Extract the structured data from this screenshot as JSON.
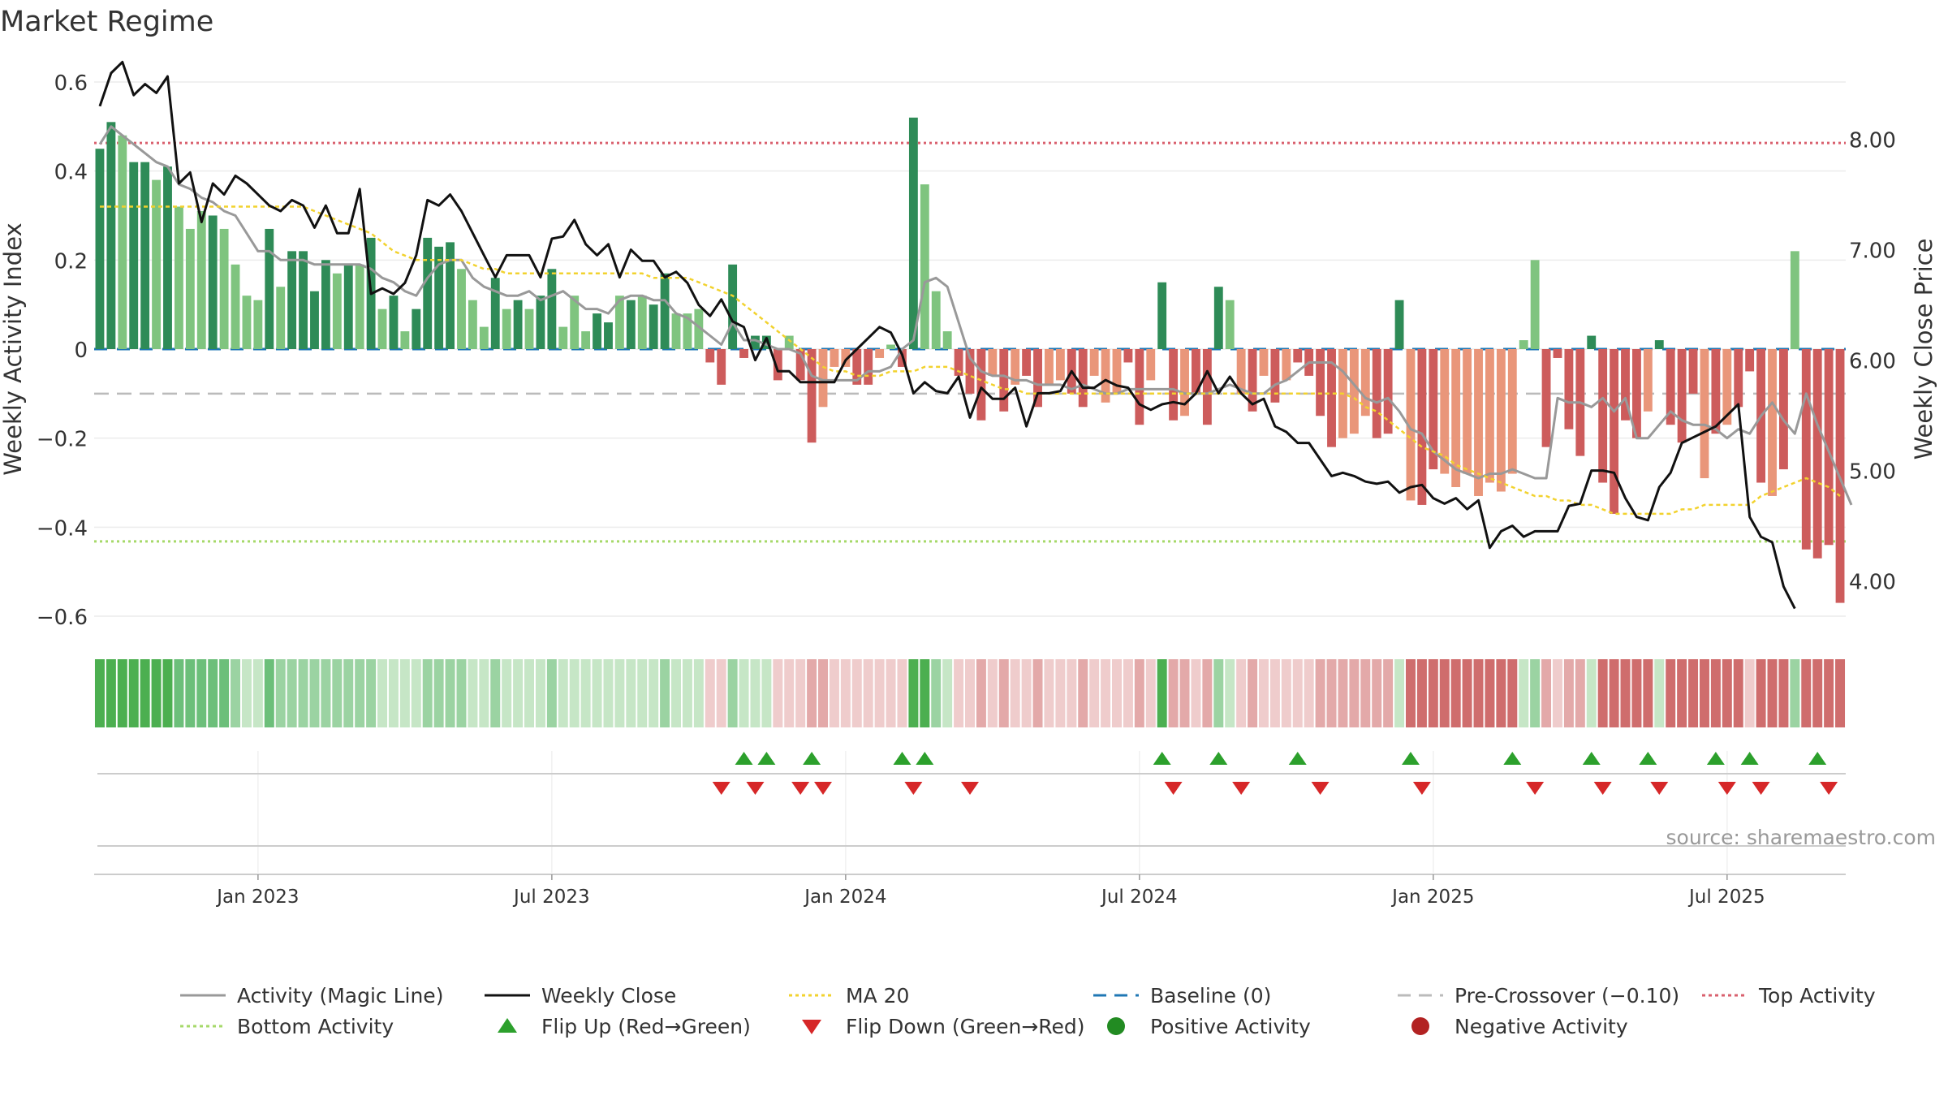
{
  "title": "Market Regime",
  "source_note": "source: sharemaestro.com",
  "colors": {
    "bar_pos_strong": "#2e8b57",
    "bar_pos_weak": "#7fc47f",
    "bar_neg_strong": "#cd5c5c",
    "bar_neg_weak": "#e9967a",
    "magic_line": "#999999",
    "weekly_close": "#111111",
    "ma20": "#f2d22e",
    "baseline": "#1f77b4",
    "pre_crossover": "#bbbbbb",
    "top_activity": "#d9606e",
    "bottom_activity": "#a6d96a",
    "flip_up": "#2ca02c",
    "flip_down": "#d62728"
  },
  "chart_data": {
    "type": "bar",
    "title": "Market Regime",
    "ylabel": "Weekly Activity Index",
    "y2label": "Weekly Close Price",
    "ylim": [
      -0.62,
      0.62
    ],
    "y2lim": [
      3.6,
      8.6
    ],
    "yticks": [
      "0.6",
      "0.4",
      "0.2",
      "0",
      "−0.2",
      "−0.4",
      "−0.6"
    ],
    "yticks_values": [
      0.6,
      0.4,
      0.2,
      0,
      -0.2,
      -0.4,
      -0.6
    ],
    "y2ticks": [
      "8.00",
      "7.00",
      "6.00",
      "5.00",
      "4.00"
    ],
    "y2ticks_values": [
      8,
      7,
      6,
      5,
      4
    ],
    "x_tick_labels": [
      "Jan 2023",
      "Jul 2023",
      "Jan 2024",
      "Jul 2024",
      "Jan 2025",
      "Jul 2025"
    ],
    "x_tick_weeks": [
      14,
      40,
      66,
      92,
      118,
      144
    ],
    "grid": true,
    "legend_position": "bottom",
    "legend": [
      {
        "label": "Activity (Magic Line)",
        "kind": "line-solid",
        "color": "#999999"
      },
      {
        "label": "Weekly Close",
        "kind": "line-solid",
        "color": "#111111"
      },
      {
        "label": "MA 20",
        "kind": "line-dotted",
        "color": "#f2d22e"
      },
      {
        "label": "Baseline (0)",
        "kind": "line-dashed",
        "color": "#1f77b4"
      },
      {
        "label": "Pre-Crossover (−0.10)",
        "kind": "line-dashed",
        "color": "#bbbbbb"
      },
      {
        "label": "Top Activity",
        "kind": "line-dotted",
        "color": "#d9606e"
      },
      {
        "label": "Bottom Activity",
        "kind": "line-dotted",
        "color": "#a6d96a"
      },
      {
        "label": "Flip Up (Red→Green)",
        "kind": "triangle-up",
        "color": "#2ca02c"
      },
      {
        "label": "Flip Down (Green→Red)",
        "kind": "triangle-down",
        "color": "#d62728"
      },
      {
        "label": "Positive Activity",
        "kind": "circle",
        "color": "#228b22"
      },
      {
        "label": "Negative Activity",
        "kind": "circle",
        "color": "#b22222"
      }
    ],
    "reference_lines": {
      "top_activity": 0.463,
      "bottom_activity": -0.432,
      "pre_crossover": -0.1,
      "baseline": 0
    },
    "series": [
      {
        "name": "Weekly Activity Index",
        "kind": "bar",
        "values": [
          0.45,
          0.51,
          0.48,
          0.42,
          0.42,
          0.38,
          0.41,
          0.32,
          0.27,
          0.31,
          0.3,
          0.27,
          0.19,
          0.12,
          0.11,
          0.27,
          0.14,
          0.22,
          0.22,
          0.13,
          0.2,
          0.17,
          0.19,
          0.19,
          0.25,
          0.09,
          0.12,
          0.04,
          0.09,
          0.25,
          0.23,
          0.24,
          0.18,
          0.11,
          0.05,
          0.16,
          0.09,
          0.11,
          0.09,
          0.12,
          0.18,
          0.05,
          0.12,
          0.04,
          0.08,
          0.06,
          0.12,
          0.11,
          0.12,
          0.1,
          0.17,
          0.08,
          0.08,
          0.09,
          -0.03,
          -0.08,
          0.19,
          -0.02,
          0.03,
          0.03,
          -0.07,
          0.03,
          -0.07,
          -0.21,
          -0.13,
          -0.04,
          -0.04,
          -0.08,
          -0.08,
          -0.02,
          0.01,
          -0.04,
          0.52,
          0.37,
          0.13,
          0.04,
          -0.06,
          -0.1,
          -0.16,
          -0.06,
          -0.14,
          -0.08,
          -0.06,
          -0.13,
          -0.08,
          -0.07,
          -0.1,
          -0.13,
          -0.06,
          -0.12,
          -0.1,
          -0.03,
          -0.17,
          -0.07,
          0.15,
          -0.16,
          -0.15,
          -0.1,
          -0.17,
          0.14,
          0.11,
          -0.1,
          -0.14,
          -0.06,
          -0.12,
          -0.07,
          -0.03,
          -0.06,
          -0.15,
          -0.22,
          -0.2,
          -0.19,
          -0.15,
          -0.2,
          -0.19,
          0.11,
          -0.34,
          -0.35,
          -0.27,
          -0.28,
          -0.31,
          -0.28,
          -0.33,
          -0.3,
          -0.32,
          -0.28,
          0.02,
          0.2,
          -0.22,
          -0.02,
          -0.18,
          -0.24,
          0.03,
          -0.3,
          -0.37,
          -0.16,
          -0.2,
          -0.14,
          0.02,
          -0.17,
          -0.21,
          -0.1,
          -0.29,
          -0.19,
          -0.17,
          -0.13,
          -0.05,
          -0.3,
          -0.33,
          -0.27,
          0.22,
          -0.45,
          -0.47,
          -0.44,
          -0.57
        ],
        "strength": [
          1,
          1,
          0,
          1,
          1,
          0,
          1,
          0,
          0,
          0,
          1,
          0,
          0,
          0,
          0,
          1,
          0,
          1,
          1,
          1,
          1,
          0,
          1,
          0,
          1,
          0,
          1,
          0,
          1,
          1,
          1,
          1,
          0,
          0,
          0,
          1,
          0,
          1,
          0,
          1,
          1,
          0,
          0,
          0,
          1,
          1,
          0,
          1,
          0,
          1,
          1,
          0,
          0,
          0,
          1,
          1,
          1,
          1,
          1,
          1,
          1,
          0,
          1,
          1,
          0,
          0,
          0,
          1,
          1,
          0,
          0,
          1,
          1,
          0,
          0,
          0,
          1,
          1,
          1,
          0,
          1,
          0,
          1,
          1,
          0,
          0,
          1,
          1,
          0,
          0,
          0,
          1,
          1,
          0,
          1,
          1,
          0,
          1,
          1,
          1,
          0,
          0,
          1,
          0,
          1,
          0,
          1,
          1,
          1,
          1,
          0,
          0,
          0,
          1,
          1,
          1,
          0,
          1,
          1,
          0,
          0,
          0,
          0,
          0,
          0,
          0,
          0,
          0,
          1,
          1,
          1,
          1,
          1,
          1,
          1,
          1,
          1,
          0,
          1,
          1,
          1,
          1,
          0,
          1,
          0,
          1,
          1,
          1,
          0,
          1,
          0,
          1,
          1,
          1,
          1
        ]
      },
      {
        "name": "Activity (Magic Line)",
        "kind": "line",
        "values": [
          0.46,
          0.5,
          0.48,
          0.46,
          0.44,
          0.42,
          0.41,
          0.37,
          0.36,
          0.34,
          0.33,
          0.31,
          0.3,
          0.26,
          0.22,
          0.22,
          0.2,
          0.2,
          0.2,
          0.19,
          0.19,
          0.19,
          0.19,
          0.19,
          0.18,
          0.16,
          0.15,
          0.13,
          0.12,
          0.16,
          0.19,
          0.2,
          0.2,
          0.16,
          0.14,
          0.13,
          0.12,
          0.12,
          0.13,
          0.11,
          0.12,
          0.13,
          0.11,
          0.09,
          0.09,
          0.08,
          0.11,
          0.12,
          0.12,
          0.11,
          0.11,
          0.08,
          0.07,
          0.05,
          0.03,
          0.01,
          0.06,
          0.02,
          0.02,
          0.01,
          -0.0,
          0.0,
          -0.01,
          -0.06,
          -0.07,
          -0.07,
          -0.07,
          -0.07,
          -0.05,
          -0.05,
          -0.04,
          -0.0,
          0.02,
          0.15,
          0.16,
          0.14,
          0.06,
          -0.02,
          -0.05,
          -0.06,
          -0.06,
          -0.07,
          -0.07,
          -0.08,
          -0.08,
          -0.08,
          -0.09,
          -0.08,
          -0.09,
          -0.1,
          -0.1,
          -0.09,
          -0.09,
          -0.09,
          -0.09,
          -0.09,
          -0.1,
          -0.1,
          -0.1,
          -0.09,
          -0.08,
          -0.09,
          -0.1,
          -0.1,
          -0.08,
          -0.07,
          -0.05,
          -0.03,
          -0.03,
          -0.03,
          -0.05,
          -0.08,
          -0.11,
          -0.12,
          -0.11,
          -0.14,
          -0.18,
          -0.19,
          -0.23,
          -0.25,
          -0.27,
          -0.28,
          -0.29,
          -0.28,
          -0.28,
          -0.27,
          -0.28,
          -0.29,
          -0.29,
          -0.11,
          -0.12,
          -0.12,
          -0.13,
          -0.11,
          -0.14,
          -0.11,
          -0.2,
          -0.2,
          -0.17,
          -0.14,
          -0.16,
          -0.17,
          -0.17,
          -0.18,
          -0.2,
          -0.18,
          -0.19,
          -0.15,
          -0.12,
          -0.16,
          -0.19,
          -0.1,
          -0.17,
          -0.23,
          -0.29,
          -0.35
        ],
        "axis": "left"
      },
      {
        "name": "MA 20",
        "kind": "line",
        "values": [
          0.32,
          0.32,
          0.32,
          0.32,
          0.32,
          0.32,
          0.32,
          0.32,
          0.32,
          0.32,
          0.32,
          0.32,
          0.32,
          0.32,
          0.32,
          0.32,
          0.32,
          0.32,
          0.32,
          0.31,
          0.3,
          0.29,
          0.28,
          0.27,
          0.26,
          0.24,
          0.22,
          0.21,
          0.2,
          0.2,
          0.2,
          0.2,
          0.2,
          0.19,
          0.18,
          0.18,
          0.17,
          0.17,
          0.17,
          0.17,
          0.17,
          0.17,
          0.17,
          0.17,
          0.17,
          0.17,
          0.17,
          0.17,
          0.17,
          0.16,
          0.16,
          0.16,
          0.16,
          0.15,
          0.14,
          0.13,
          0.12,
          0.1,
          0.08,
          0.06,
          0.04,
          0.02,
          -0.0,
          -0.02,
          -0.04,
          -0.05,
          -0.05,
          -0.06,
          -0.06,
          -0.06,
          -0.05,
          -0.05,
          -0.05,
          -0.04,
          -0.04,
          -0.04,
          -0.05,
          -0.06,
          -0.07,
          -0.08,
          -0.09,
          -0.09,
          -0.1,
          -0.1,
          -0.1,
          -0.1,
          -0.1,
          -0.1,
          -0.1,
          -0.1,
          -0.1,
          -0.1,
          -0.1,
          -0.1,
          -0.1,
          -0.1,
          -0.1,
          -0.1,
          -0.1,
          -0.1,
          -0.1,
          -0.1,
          -0.1,
          -0.1,
          -0.1,
          -0.1,
          -0.1,
          -0.1,
          -0.1,
          -0.1,
          -0.1,
          -0.11,
          -0.13,
          -0.14,
          -0.16,
          -0.18,
          -0.2,
          -0.22,
          -0.23,
          -0.24,
          -0.26,
          -0.27,
          -0.28,
          -0.29,
          -0.3,
          -0.31,
          -0.32,
          -0.33,
          -0.33,
          -0.34,
          -0.34,
          -0.35,
          -0.35,
          -0.36,
          -0.37,
          -0.37,
          -0.37,
          -0.37,
          -0.37,
          -0.37,
          -0.36,
          -0.36,
          -0.35,
          -0.35,
          -0.35,
          -0.35,
          -0.35,
          -0.33,
          -0.32,
          -0.31,
          -0.3,
          -0.29,
          -0.3,
          -0.31,
          -0.33
        ],
        "axis": "left"
      },
      {
        "name": "Weekly Close",
        "kind": "line",
        "values": [
          8.3,
          8.6,
          8.7,
          8.4,
          8.5,
          8.42,
          8.57,
          7.6,
          7.7,
          7.25,
          7.6,
          7.5,
          7.67,
          7.6,
          7.5,
          7.4,
          7.35,
          7.45,
          7.4,
          7.2,
          7.4,
          7.15,
          7.15,
          7.55,
          6.6,
          6.65,
          6.6,
          6.7,
          6.95,
          7.45,
          7.4,
          7.5,
          7.35,
          7.15,
          6.95,
          6.75,
          6.95,
          6.95,
          6.95,
          6.75,
          7.1,
          7.12,
          7.27,
          7.05,
          6.95,
          7.05,
          6.75,
          7.0,
          6.9,
          6.9,
          6.75,
          6.8,
          6.7,
          6.5,
          6.4,
          6.55,
          6.35,
          6.3,
          6.0,
          6.2,
          5.9,
          5.9,
          5.8,
          5.8,
          5.8,
          5.8,
          6.0,
          6.1,
          6.2,
          6.3,
          6.25,
          6.05,
          5.7,
          5.8,
          5.72,
          5.7,
          5.85,
          5.48,
          5.75,
          5.65,
          5.65,
          5.75,
          5.4,
          5.7,
          5.7,
          5.72,
          5.9,
          5.75,
          5.75,
          5.82,
          5.77,
          5.75,
          5.6,
          5.55,
          5.6,
          5.62,
          5.6,
          5.7,
          5.9,
          5.7,
          5.85,
          5.7,
          5.6,
          5.65,
          5.4,
          5.35,
          5.25,
          5.25,
          5.1,
          4.95,
          4.98,
          4.95,
          4.9,
          4.88,
          4.9,
          4.8,
          4.85,
          4.87,
          4.75,
          4.7,
          4.75,
          4.65,
          4.73,
          4.3,
          4.45,
          4.5,
          4.4,
          4.45,
          4.45,
          4.45,
          4.68,
          4.7,
          5.0,
          5.0,
          4.98,
          4.75,
          4.58,
          4.55,
          4.85,
          4.98,
          5.25,
          5.3,
          5.35,
          5.4,
          5.5,
          5.6,
          4.58,
          4.4,
          4.35,
          3.95,
          3.75
        ],
        "axis": "right"
      }
    ],
    "regime_strip": [
      2,
      2,
      2,
      2,
      2,
      2,
      2,
      1,
      1,
      1,
      1,
      1,
      1,
      1,
      1,
      1,
      1,
      1,
      1,
      1,
      1,
      1,
      1,
      1,
      1,
      1,
      1,
      1,
      1,
      1,
      1,
      1,
      1,
      1,
      1,
      1,
      1,
      1,
      1,
      1,
      1,
      1,
      1,
      1,
      1,
      1,
      1,
      1,
      1,
      1,
      1,
      1,
      1,
      1,
      -1,
      -1,
      1,
      1,
      1,
      1,
      -1,
      -1,
      -1,
      -1,
      -1,
      -1,
      -1,
      -1,
      -1,
      -1,
      -1,
      -1,
      2,
      2,
      1,
      1,
      -1,
      -1,
      -1,
      -1,
      -1,
      -1,
      -1,
      -1,
      -1,
      -1,
      -1,
      -1,
      -1,
      -1,
      -1,
      -1,
      -1,
      -1,
      2,
      -1,
      -1,
      -1,
      -1,
      1,
      1,
      -1,
      -1,
      -1,
      -1,
      -1,
      -1,
      -1,
      -1,
      -1,
      -1,
      -1,
      -1,
      -1,
      -1,
      1,
      -2,
      -2,
      -2,
      -2,
      -2,
      -2,
      -2,
      -2,
      -2,
      -2,
      1,
      1,
      -1,
      -1,
      -1,
      -1,
      1,
      -2,
      -2,
      -2,
      -2,
      -2,
      1,
      -2,
      -2,
      -2,
      -2,
      -2,
      -2,
      -2,
      -1,
      -2,
      -2,
      -2,
      1,
      -2,
      -2,
      -2,
      -2
    ],
    "flip_up_weeks": [
      57,
      59,
      63,
      71,
      73,
      94,
      99,
      106,
      116,
      125,
      132,
      137,
      143,
      146,
      152
    ],
    "flip_down_weeks": [
      55,
      58,
      62,
      64,
      72,
      77,
      95,
      101,
      108,
      117,
      127,
      133,
      138,
      144,
      147,
      153
    ]
  }
}
